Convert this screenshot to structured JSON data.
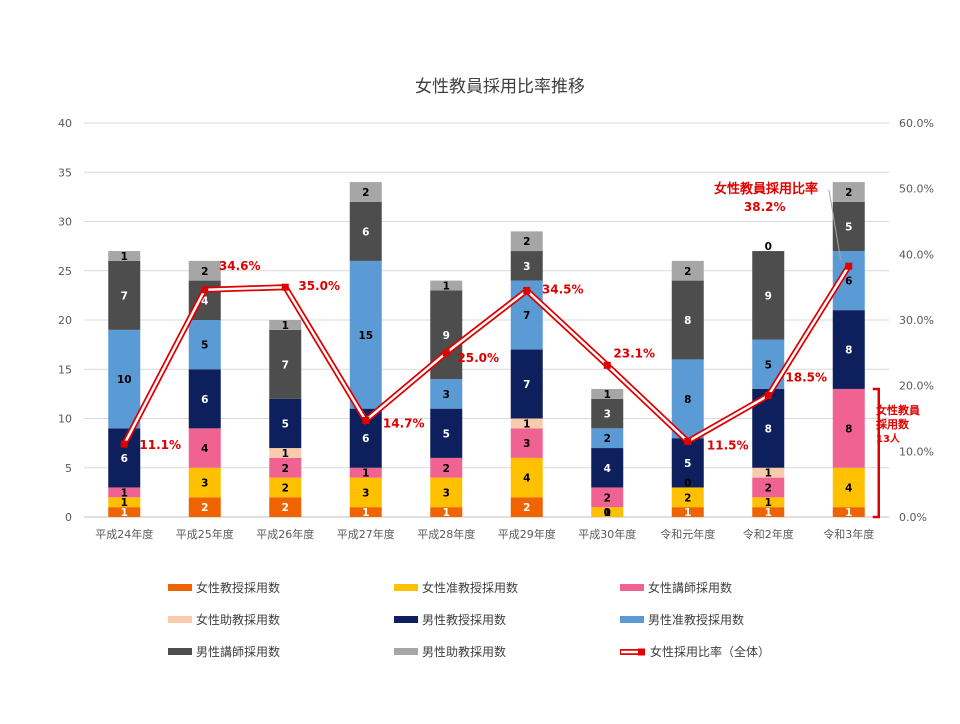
{
  "chart_data": {
    "type": "bar",
    "stacked": true,
    "title": "女性教員採用比率推移",
    "categories": [
      "平成24年度",
      "平成25年度",
      "平成26年度",
      "平成27年度",
      "平成28年度",
      "平成29年度",
      "平成30年度",
      "令和元年度",
      "令和2年度",
      "令和3年度"
    ],
    "y_left_lim": [
      0,
      40
    ],
    "y_left_ticks": [
      0,
      5,
      10,
      15,
      20,
      25,
      30,
      35,
      40
    ],
    "y_right_lim": [
      0,
      60
    ],
    "y_right_ticks": [
      "0.0%",
      "10.0%",
      "20.0%",
      "30.0%",
      "40.0%",
      "50.0%",
      "60.0%"
    ],
    "grid": true,
    "legend_position": "bottom",
    "series": [
      {
        "name": "女性教授採用数",
        "color": "#f06400",
        "values": [
          1,
          2,
          2,
          1,
          1,
          2,
          0,
          1,
          1,
          1
        ],
        "label_color": "#ffffff"
      },
      {
        "name": "女性准教授採用数",
        "color": "#ffc000",
        "values": [
          1,
          3,
          2,
          3,
          3,
          4,
          1,
          2,
          1,
          4
        ],
        "label_color": "#000000"
      },
      {
        "name": "女性講師採用数",
        "color": "#f06292",
        "values": [
          1,
          4,
          2,
          1,
          2,
          3,
          2,
          0,
          2,
          8
        ],
        "label_color": "#000000"
      },
      {
        "name": "女性助教採用数",
        "color": "#f8cbad",
        "values": [
          0,
          0,
          1,
          0,
          0,
          1,
          0,
          0,
          1,
          0
        ],
        "label_color": "#000000"
      },
      {
        "name": "男性教授採用数",
        "color": "#0d1f5c",
        "values": [
          6,
          6,
          5,
          6,
          5,
          7,
          4,
          5,
          8,
          8
        ],
        "label_color": "#ffffff"
      },
      {
        "name": "男性准教授採用数",
        "color": "#5b9bd5",
        "values": [
          10,
          5,
          0,
          15,
          3,
          7,
          2,
          8,
          5,
          6
        ],
        "label_color": "#000000"
      },
      {
        "name": "男性講師採用数",
        "color": "#4d4d4d",
        "values": [
          7,
          4,
          7,
          6,
          9,
          3,
          3,
          8,
          9,
          5
        ],
        "label_color": "#ffffff"
      },
      {
        "name": "男性助教採用数",
        "color": "#a6a6a6",
        "values": [
          1,
          2,
          1,
          2,
          1,
          2,
          1,
          2,
          0,
          2
        ],
        "label_color": "#000000"
      }
    ],
    "line_series": {
      "name": "女性採用比率（全体）",
      "color": "#e00000",
      "values": [
        11.1,
        34.6,
        35.0,
        14.7,
        25.0,
        34.5,
        23.1,
        11.5,
        18.5,
        38.2
      ],
      "labels": [
        "11.1%",
        "34.6%",
        "35.0%",
        "14.7%",
        "25.0%",
        "34.5%",
        "23.1%",
        "11.5%",
        "18.5%",
        "38.2%"
      ]
    },
    "annotations": {
      "rate_callout": "女性教員採用比率",
      "count_callout_line1": "女性教員",
      "count_callout_line2": "採用数",
      "count_callout_line3": "13人"
    }
  }
}
